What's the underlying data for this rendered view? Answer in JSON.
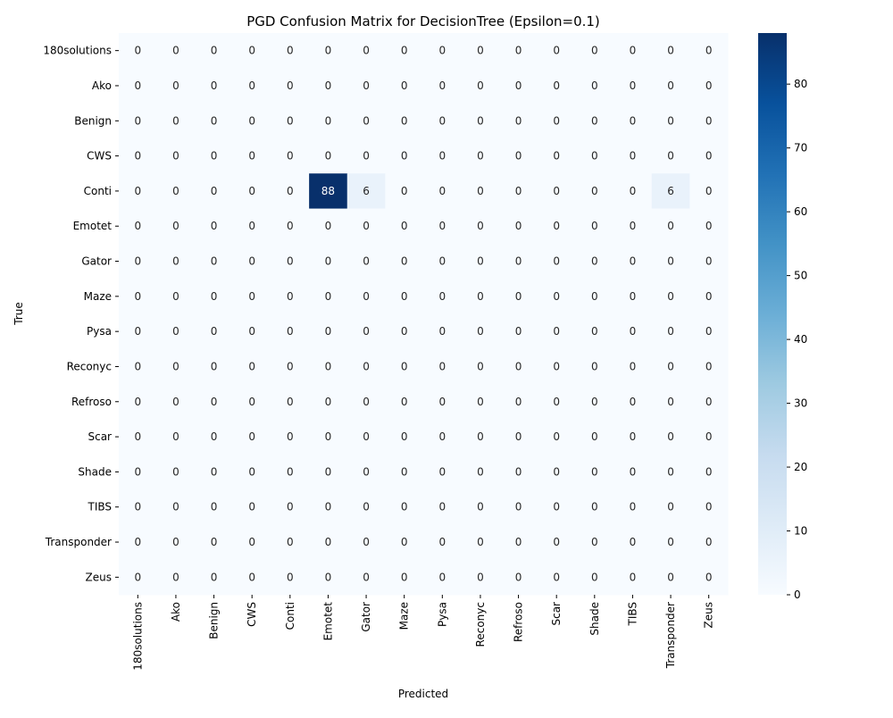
{
  "chart_data": {
    "type": "heatmap",
    "title": "PGD Confusion Matrix for DecisionTree (Epsilon=0.1)",
    "xlabel": "Predicted",
    "ylabel": "True",
    "row_labels": [
      "180solutions",
      "Ako",
      "Benign",
      "CWS",
      "Conti",
      "Emotet",
      "Gator",
      "Maze",
      "Pysa",
      "Reconyc",
      "Refroso",
      "Scar",
      "Shade",
      "TIBS",
      "Transponder",
      "Zeus"
    ],
    "col_labels": [
      "180solutions",
      "Ako",
      "Benign",
      "CWS",
      "Conti",
      "Emotet",
      "Gator",
      "Maze",
      "Pysa",
      "Reconyc",
      "Refroso",
      "Scar",
      "Shade",
      "TIBS",
      "Transponder",
      "Zeus"
    ],
    "values": [
      [
        0,
        0,
        0,
        0,
        0,
        0,
        0,
        0,
        0,
        0,
        0,
        0,
        0,
        0,
        0,
        0
      ],
      [
        0,
        0,
        0,
        0,
        0,
        0,
        0,
        0,
        0,
        0,
        0,
        0,
        0,
        0,
        0,
        0
      ],
      [
        0,
        0,
        0,
        0,
        0,
        0,
        0,
        0,
        0,
        0,
        0,
        0,
        0,
        0,
        0,
        0
      ],
      [
        0,
        0,
        0,
        0,
        0,
        0,
        0,
        0,
        0,
        0,
        0,
        0,
        0,
        0,
        0,
        0
      ],
      [
        0,
        0,
        0,
        0,
        0,
        88,
        6,
        0,
        0,
        0,
        0,
        0,
        0,
        0,
        6,
        0
      ],
      [
        0,
        0,
        0,
        0,
        0,
        0,
        0,
        0,
        0,
        0,
        0,
        0,
        0,
        0,
        0,
        0
      ],
      [
        0,
        0,
        0,
        0,
        0,
        0,
        0,
        0,
        0,
        0,
        0,
        0,
        0,
        0,
        0,
        0
      ],
      [
        0,
        0,
        0,
        0,
        0,
        0,
        0,
        0,
        0,
        0,
        0,
        0,
        0,
        0,
        0,
        0
      ],
      [
        0,
        0,
        0,
        0,
        0,
        0,
        0,
        0,
        0,
        0,
        0,
        0,
        0,
        0,
        0,
        0
      ],
      [
        0,
        0,
        0,
        0,
        0,
        0,
        0,
        0,
        0,
        0,
        0,
        0,
        0,
        0,
        0,
        0
      ],
      [
        0,
        0,
        0,
        0,
        0,
        0,
        0,
        0,
        0,
        0,
        0,
        0,
        0,
        0,
        0,
        0
      ],
      [
        0,
        0,
        0,
        0,
        0,
        0,
        0,
        0,
        0,
        0,
        0,
        0,
        0,
        0,
        0,
        0
      ],
      [
        0,
        0,
        0,
        0,
        0,
        0,
        0,
        0,
        0,
        0,
        0,
        0,
        0,
        0,
        0,
        0
      ],
      [
        0,
        0,
        0,
        0,
        0,
        0,
        0,
        0,
        0,
        0,
        0,
        0,
        0,
        0,
        0,
        0
      ],
      [
        0,
        0,
        0,
        0,
        0,
        0,
        0,
        0,
        0,
        0,
        0,
        0,
        0,
        0,
        0,
        0
      ],
      [
        0,
        0,
        0,
        0,
        0,
        0,
        0,
        0,
        0,
        0,
        0,
        0,
        0,
        0,
        0,
        0
      ]
    ],
    "colorbar": {
      "range": [
        0,
        88
      ],
      "ticks": [
        0,
        10,
        20,
        30,
        40,
        50,
        60,
        70,
        80
      ],
      "colormap": "Blues",
      "stops": [
        "#f7fbff",
        "#deebf7",
        "#c6dbef",
        "#9ecae1",
        "#6baed6",
        "#4292c6",
        "#2171b5",
        "#08519c",
        "#08306b"
      ]
    },
    "annotations": "cell counts shown in each cell",
    "grid": false
  }
}
